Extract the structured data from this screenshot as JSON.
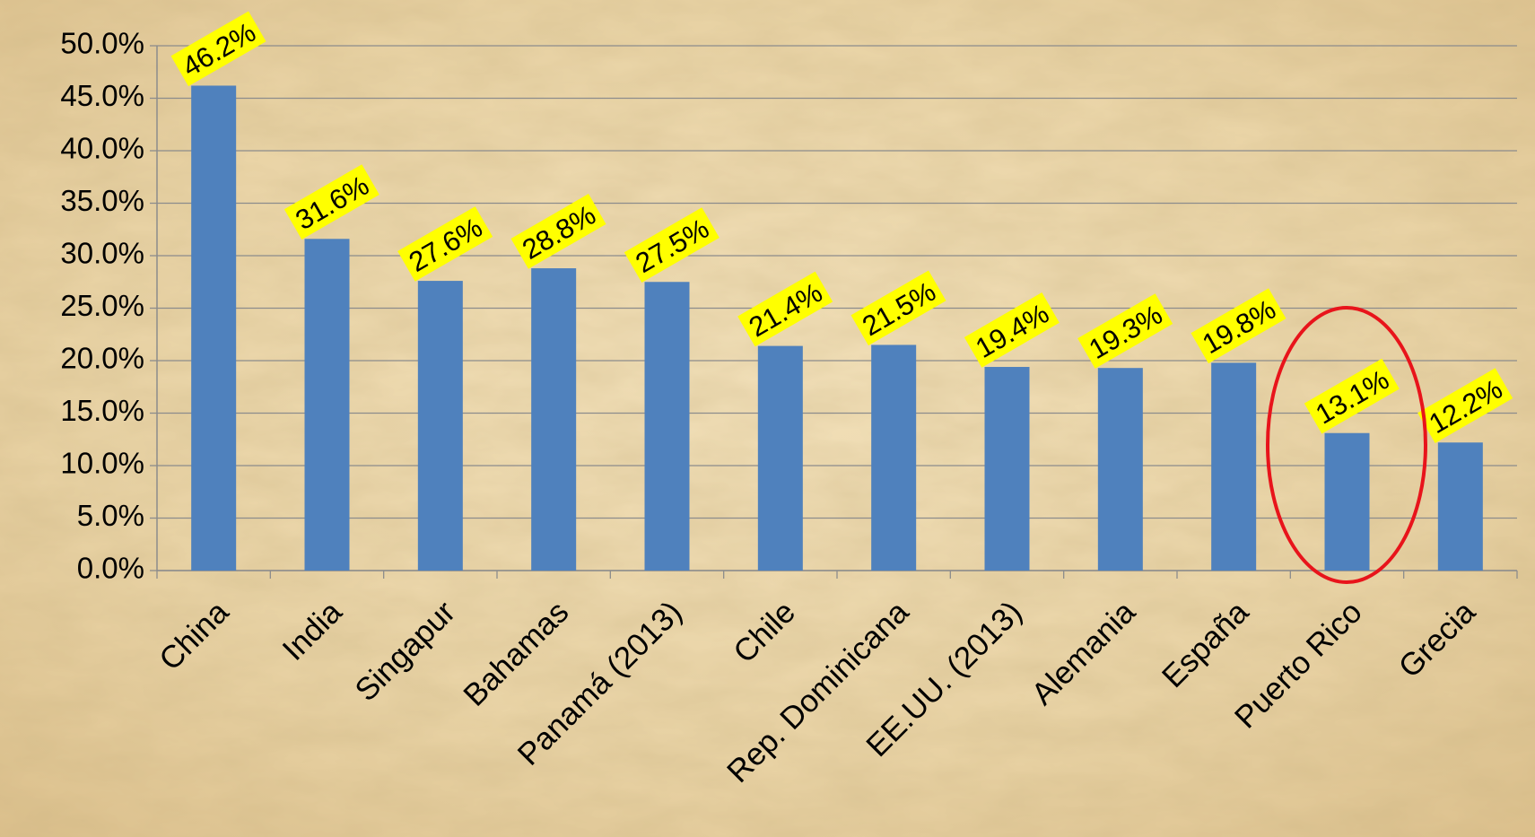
{
  "chart_data": {
    "type": "bar",
    "categories": [
      "China",
      "India",
      "Singapur",
      "Bahamas",
      "Panamá (2013)",
      "Chile",
      "Rep. Dominicana",
      "EE.UU. (2013)",
      "Alemania",
      "España",
      "Puerto Rico",
      "Grecia"
    ],
    "values": [
      46.2,
      31.6,
      27.6,
      28.8,
      27.5,
      21.4,
      21.5,
      19.4,
      19.3,
      19.8,
      13.1,
      12.2
    ],
    "value_labels": [
      "46.2%",
      "31.6%",
      "27.6%",
      "28.8%",
      "27.5%",
      "21.4%",
      "21.5%",
      "19.4%",
      "19.3%",
      "19.8%",
      "13.1%",
      "12.2%"
    ],
    "color": "#4f81bd",
    "ylim": [
      0,
      50
    ],
    "yticks": [
      {
        "value": 0,
        "label": "0.0%"
      },
      {
        "value": 5,
        "label": "5.0%"
      },
      {
        "value": 10,
        "label": "10.0%"
      },
      {
        "value": 15,
        "label": "15.0%"
      },
      {
        "value": 20,
        "label": "20.0%"
      },
      {
        "value": 25,
        "label": "25.0%"
      },
      {
        "value": 30,
        "label": "30.0%"
      },
      {
        "value": 35,
        "label": "35.0%"
      },
      {
        "value": 40,
        "label": "40.0%"
      },
      {
        "value": 45,
        "label": "45.0%"
      },
      {
        "value": 50,
        "label": "50.0%"
      }
    ],
    "grid": true
  }
}
